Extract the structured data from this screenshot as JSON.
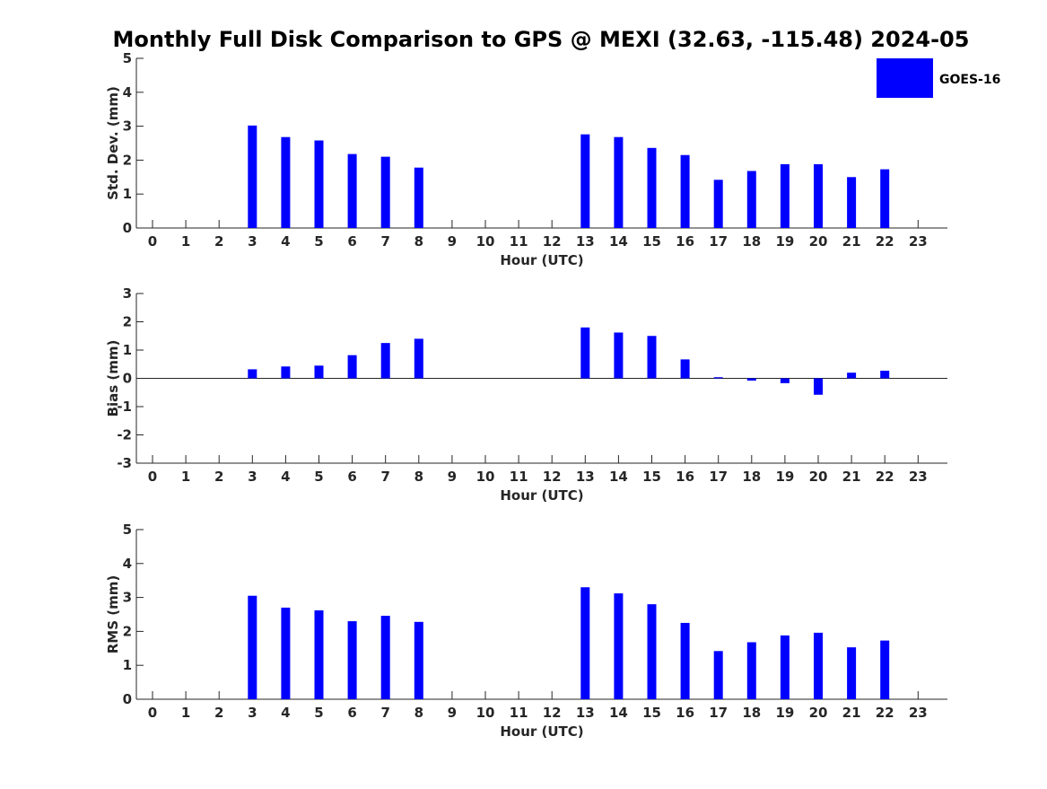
{
  "title": "Monthly Full Disk Comparison to GPS @ MEXI (32.63, -115.48) 2024-05",
  "legend": {
    "label": "GOES-16",
    "color": "#0000ff"
  },
  "chart_data": [
    {
      "type": "bar",
      "title": "",
      "xlabel": "Hour (UTC)",
      "ylabel": "Std. Dev. (mm)",
      "ylim": [
        0,
        5
      ],
      "yticks": [
        "0",
        "1",
        "2",
        "3",
        "4",
        "5"
      ],
      "categories": [
        "0",
        "1",
        "2",
        "3",
        "4",
        "5",
        "6",
        "7",
        "8",
        "9",
        "10",
        "11",
        "12",
        "13",
        "14",
        "15",
        "16",
        "17",
        "18",
        "19",
        "20",
        "21",
        "22",
        "23"
      ],
      "series": [
        {
          "name": "GOES-16",
          "values": [
            null,
            null,
            null,
            3.02,
            2.68,
            2.58,
            2.18,
            2.1,
            1.78,
            null,
            null,
            null,
            null,
            2.76,
            2.68,
            2.36,
            2.15,
            1.42,
            1.68,
            1.88,
            1.88,
            1.5,
            1.73,
            null
          ]
        }
      ]
    },
    {
      "type": "bar",
      "title": "",
      "xlabel": "Hour (UTC)",
      "ylabel": "Bias (mm)",
      "ylim": [
        -3,
        3
      ],
      "yticks": [
        "-3",
        "-2",
        "-1",
        "0",
        "1",
        "2",
        "3"
      ],
      "categories": [
        "0",
        "1",
        "2",
        "3",
        "4",
        "5",
        "6",
        "7",
        "8",
        "9",
        "10",
        "11",
        "12",
        "13",
        "14",
        "15",
        "16",
        "17",
        "18",
        "19",
        "20",
        "21",
        "22",
        "23"
      ],
      "series": [
        {
          "name": "GOES-16",
          "values": [
            null,
            null,
            null,
            0.32,
            0.42,
            0.45,
            0.82,
            1.25,
            1.4,
            null,
            null,
            null,
            null,
            1.8,
            1.62,
            1.5,
            0.67,
            0.04,
            -0.08,
            -0.17,
            -0.58,
            0.2,
            0.27,
            null
          ]
        }
      ]
    },
    {
      "type": "bar",
      "title": "",
      "xlabel": "Hour (UTC)",
      "ylabel": "RMS (mm)",
      "ylim": [
        0,
        5
      ],
      "yticks": [
        "0",
        "1",
        "2",
        "3",
        "4",
        "5"
      ],
      "categories": [
        "0",
        "1",
        "2",
        "3",
        "4",
        "5",
        "6",
        "7",
        "8",
        "9",
        "10",
        "11",
        "12",
        "13",
        "14",
        "15",
        "16",
        "17",
        "18",
        "19",
        "20",
        "21",
        "22",
        "23"
      ],
      "series": [
        {
          "name": "GOES-16",
          "values": [
            null,
            null,
            null,
            3.05,
            2.7,
            2.62,
            2.3,
            2.46,
            2.28,
            null,
            null,
            null,
            null,
            3.3,
            3.12,
            2.8,
            2.25,
            1.42,
            1.68,
            1.88,
            1.96,
            1.53,
            1.73,
            null
          ]
        }
      ]
    }
  ]
}
